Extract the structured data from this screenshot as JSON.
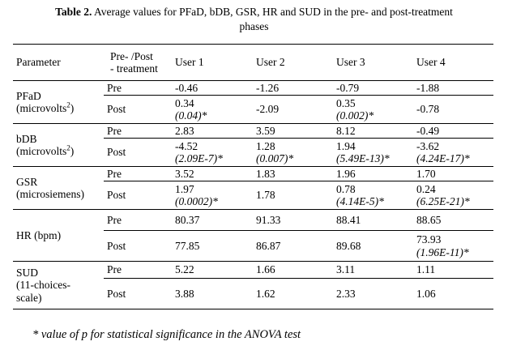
{
  "caption": {
    "label": "Table 2.",
    "text": "Average values for PFaD, bDB, GSR, HR and SUD in the pre- and post-treatment",
    "text2": "phases"
  },
  "table": {
    "headers": [
      "Parameter",
      "Pre- /Post",
      "- treatment",
      "User 1",
      "User 2",
      "User 3",
      "User 4"
    ],
    "groups": [
      {
        "param": [
          "PFaD",
          "(microvolts",
          "2",
          ")"
        ],
        "rows": [
          {
            "phase": "Pre",
            "values": [
              [
                "-0.46",
                ""
              ],
              [
                "-1.26",
                ""
              ],
              [
                "-0.79",
                ""
              ],
              [
                "-1.88",
                ""
              ]
            ]
          },
          {
            "phase": "Post",
            "values": [
              [
                "0.34",
                "(0.04)*"
              ],
              [
                "-2.09",
                ""
              ],
              [
                "0.35",
                "(0.002)*"
              ],
              [
                "-0.78",
                ""
              ]
            ]
          }
        ]
      },
      {
        "param": [
          "bDB",
          "(microvolts",
          "2",
          ")"
        ],
        "rows": [
          {
            "phase": "Pre",
            "values": [
              [
                "2.83",
                ""
              ],
              [
                "3.59",
                ""
              ],
              [
                "8.12",
                ""
              ],
              [
                "-0.49",
                ""
              ]
            ]
          },
          {
            "phase": "Post",
            "values": [
              [
                "-4.52",
                "(2.09E-7)*"
              ],
              [
                "1.28",
                "(0.007)*"
              ],
              [
                "1.94",
                "(5.49E-13)*"
              ],
              [
                "-3.62",
                "(4.24E-17)*"
              ]
            ]
          }
        ]
      },
      {
        "param": [
          "GSR",
          "(microsiemens)",
          "",
          ""
        ],
        "rows": [
          {
            "phase": "Pre",
            "values": [
              [
                "3.52",
                ""
              ],
              [
                "1.83",
                ""
              ],
              [
                "1.96",
                ""
              ],
              [
                "1.70",
                ""
              ]
            ]
          },
          {
            "phase": "Post",
            "values": [
              [
                "1.97",
                "(0.0002)*"
              ],
              [
                "1.78",
                ""
              ],
              [
                "0.78",
                "(4.14E-5)*"
              ],
              [
                "0.24",
                "(6.25E-21)*"
              ]
            ]
          }
        ]
      },
      {
        "param": [
          "HR (bpm)",
          "",
          "",
          ""
        ],
        "rows": [
          {
            "phase": "Pre",
            "values": [
              [
                "80.37",
                ""
              ],
              [
                "91.33",
                ""
              ],
              [
                "88.41",
                ""
              ],
              [
                "88.65",
                ""
              ]
            ]
          },
          {
            "phase": "Post",
            "values": [
              [
                "77.85",
                ""
              ],
              [
                "86.87",
                ""
              ],
              [
                "89.68",
                ""
              ],
              [
                "73.93",
                "(1.96E-11)*"
              ]
            ]
          }
        ]
      },
      {
        "param": [
          "SUD",
          "(11-choices-",
          "scale)",
          ""
        ],
        "rows": [
          {
            "phase": "Pre",
            "values": [
              [
                "5.22",
                ""
              ],
              [
                "1.66",
                ""
              ],
              [
                "3.11",
                ""
              ],
              [
                "1.11",
                ""
              ]
            ]
          },
          {
            "phase": "Post",
            "values": [
              [
                "3.88",
                ""
              ],
              [
                "1.62",
                ""
              ],
              [
                "2.33",
                ""
              ],
              [
                "1.06",
                ""
              ]
            ]
          }
        ]
      }
    ]
  },
  "footnote": "* value of p for statistical significance in the ANOVA test"
}
